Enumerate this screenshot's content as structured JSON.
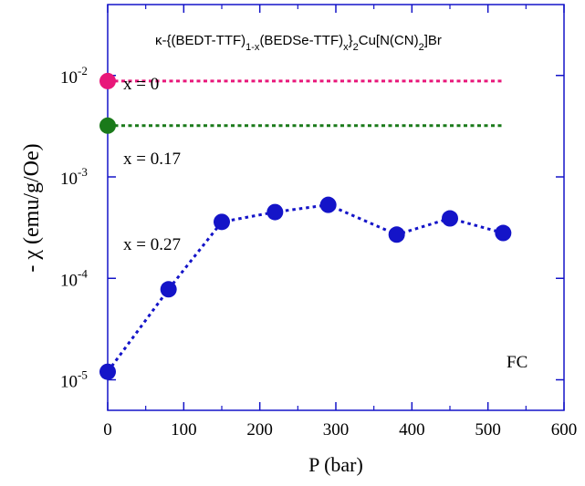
{
  "chart_data": {
    "type": "scatter",
    "title_parts": {
      "kappa": "κ-{(BEDT-TTF)",
      "sub1": "1-x",
      "mid1": "(BEDSe-TTF)",
      "sub2": "x",
      "mid2": "}",
      "sub3": "2",
      "mid3": "Cu[N(CN)",
      "sub4": "2",
      "end": "]Br"
    },
    "xlabel": "P (bar)",
    "ylabel": "- χ (emu/g/Oe)",
    "xlim": [
      0,
      600
    ],
    "ylim": [
      5e-06,
      0.05
    ],
    "yscale": "log",
    "x_ticks": [
      "0",
      "100",
      "200",
      "300",
      "400",
      "500",
      "600"
    ],
    "y_ticks": [
      {
        "base": "10",
        "exp": "-5",
        "value": 1e-05
      },
      {
        "base": "10",
        "exp": "-4",
        "value": 0.0001
      },
      {
        "base": "10",
        "exp": "-3",
        "value": 0.001
      },
      {
        "base": "10",
        "exp": "-2",
        "value": 0.01
      }
    ],
    "annotation": "FC",
    "series": [
      {
        "label": "x  = 0",
        "color": "#e8177a",
        "x": [
          0
        ],
        "y": [
          0.0088
        ],
        "line_to_x": 520
      },
      {
        "label": "x  = 0.17",
        "color": "#1a7a1a",
        "x": [
          0
        ],
        "y": [
          0.0032
        ],
        "line_to_x": 520
      },
      {
        "label": "x  = 0.27",
        "color": "#1414c8",
        "x": [
          0,
          80,
          150,
          220,
          290,
          380,
          450,
          520
        ],
        "y": [
          1.2e-05,
          7.8e-05,
          0.00036,
          0.00045,
          0.00053,
          0.00027,
          0.00039,
          0.00028
        ]
      }
    ]
  }
}
